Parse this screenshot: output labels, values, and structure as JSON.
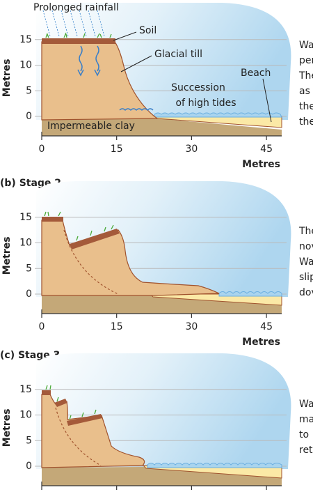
{
  "panels": [
    {
      "y_axis_label": "Metres",
      "x_axis_label": "Metres",
      "yticks": [
        0,
        5,
        10,
        15
      ],
      "xticks": [
        0,
        15,
        30,
        45
      ],
      "annotations": {
        "rainfall": "Prolonged rainfall",
        "soil": "Soil",
        "till": "Glacial till",
        "beach": "Beach",
        "tides": [
          "Succession",
          "of high tides"
        ],
        "clay": "Impermeable clay"
      },
      "side_text": [
        "Wa",
        "per",
        "The",
        "as",
        "the",
        "the"
      ]
    },
    {
      "heading": "(b) Stage 2",
      "y_axis_label": "Metres",
      "x_axis_label": "Metres",
      "yticks": [
        0,
        5,
        10,
        15
      ],
      "xticks": [
        0,
        15,
        30,
        45
      ],
      "side_text": [
        "The",
        "nov",
        "Wa",
        "slip",
        "dov"
      ]
    },
    {
      "heading": "(c) Stage 3",
      "y_axis_label": "Metres",
      "yticks": [
        0,
        5,
        10,
        15
      ],
      "side_text": [
        "Wa",
        "ma",
        "to",
        "ret"
      ]
    }
  ]
}
